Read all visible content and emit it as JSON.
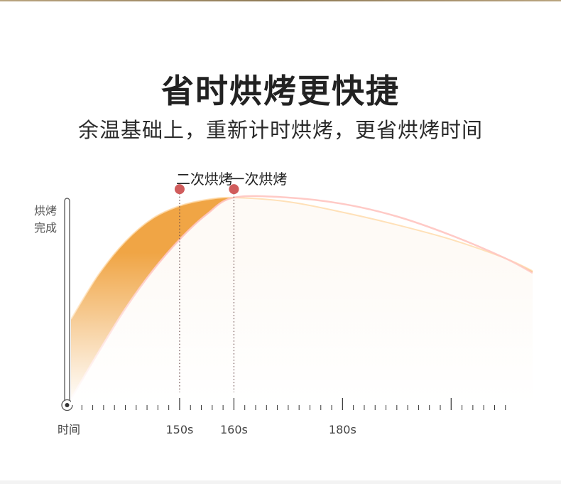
{
  "page": {
    "title": "省时烘烤更快捷",
    "subtitle": "余温基础上，重新计时烘烤，更省烘烤时间"
  },
  "colors": {
    "second_bake": "#f0a545",
    "first_bake": "#ff5a45",
    "first_bake_light": "#ff7a72",
    "marker": "#d05c5c",
    "axis": "#333333",
    "text": "#333333",
    "muted_text": "#555555"
  },
  "chart_data": {
    "type": "area",
    "title": "",
    "xlabel": "时间",
    "ylabel": "烘烤\n完成",
    "xlim": [
      130,
      215
    ],
    "ylim": [
      0,
      1
    ],
    "x_tick_labels": [
      {
        "x": 150,
        "label": "150s"
      },
      {
        "x": 160,
        "label": "160s"
      },
      {
        "x": 180,
        "label": "180s"
      }
    ],
    "grid": false,
    "series": [
      {
        "name": "二次烘烤",
        "x": [
          130,
          135,
          140,
          145,
          150,
          155,
          160,
          170,
          180,
          190,
          200,
          210,
          215
        ],
        "values": [
          0.41,
          0.62,
          0.78,
          0.89,
          0.95,
          0.98,
          0.99,
          0.97,
          0.92,
          0.86,
          0.79,
          0.7,
          0.64
        ]
      },
      {
        "name": "一次烘烤",
        "x": [
          130,
          135,
          140,
          145,
          150,
          155,
          160,
          170,
          180,
          190,
          200,
          210,
          215
        ],
        "values": [
          0.03,
          0.25,
          0.46,
          0.64,
          0.79,
          0.91,
          0.99,
          0.99,
          0.96,
          0.9,
          0.81,
          0.7,
          0.63
        ]
      }
    ],
    "annotations": [
      {
        "x": 150,
        "y": 1.03,
        "label": "二次烘烤"
      },
      {
        "x": 160,
        "y": 1.03,
        "label": "一次烘烤"
      }
    ]
  }
}
